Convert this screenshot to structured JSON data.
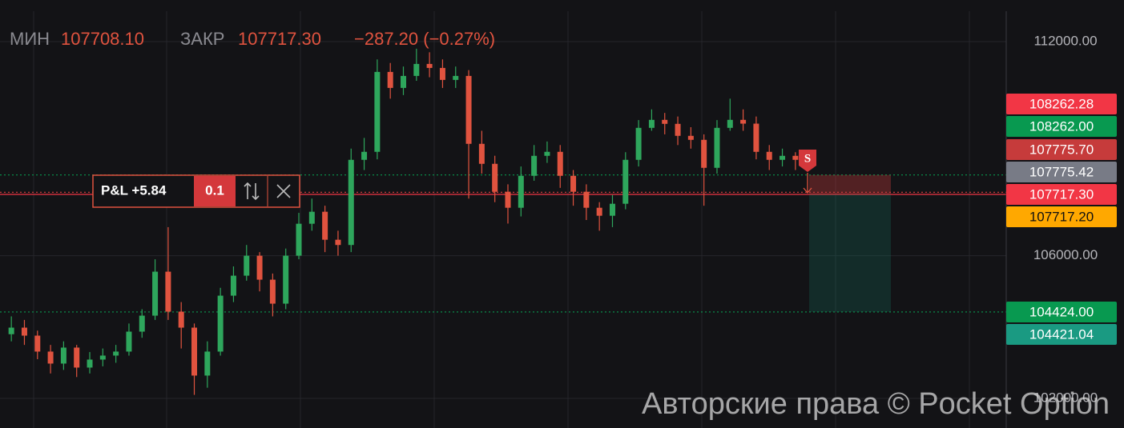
{
  "header": {
    "low_label": "МИН",
    "low_value": "107708.10",
    "close_label": "ЗАКР",
    "close_value": "107717.30",
    "change": "−287.20 (−0.27%)"
  },
  "position": {
    "pnl": "P&L +5.84",
    "volume": "0.1",
    "marker": "S"
  },
  "watermark": "Авторские права © Pocket Option",
  "chart_data": {
    "type": "candlestick",
    "ylim": [
      101000,
      113000
    ],
    "yticks": [
      {
        "value": 112000,
        "label": "112000.00"
      },
      {
        "value": 106000,
        "label": "106000.00"
      },
      {
        "value": 102000,
        "label": "102000.00"
      }
    ],
    "grid": true,
    "up_color": "#2ea65c",
    "down_color": "#e0533f",
    "open": [
      103800,
      103984,
      103760,
      103313,
      102977,
      103425,
      102865,
      103089,
      103201,
      103313,
      103872,
      104320,
      105552,
      104432,
      103984,
      102641,
      103313,
      104880,
      105440,
      105999,
      105328,
      104656,
      106000,
      106895,
      107231,
      106447,
      106300,
      108686,
      108910,
      111149,
      110701,
      111037,
      111373,
      111261,
      110925,
      111037,
      109134,
      108574,
      107791,
      107343,
      108238,
      108798,
      108910,
      108238,
      107791,
      107343,
      107119,
      107455,
      108686,
      109582,
      109806,
      109694,
      109358,
      109246,
      108462,
      109582,
      109806,
      109700,
      108910,
      108686,
      108798
    ],
    "high": [
      104300,
      104200,
      103900,
      103500,
      103600,
      103500,
      103300,
      103400,
      103500,
      104100,
      104500,
      105900,
      106800,
      104700,
      104100,
      103600,
      105100,
      105700,
      106300,
      106100,
      105500,
      106200,
      107200,
      107600,
      107400,
      106700,
      109000,
      109300,
      111500,
      111400,
      111300,
      111800,
      111700,
      111500,
      111300,
      111200,
      109500,
      108800,
      108000,
      108500,
      109100,
      109200,
      109100,
      108400,
      108000,
      107500,
      107700,
      108900,
      109800,
      110100,
      110000,
      109900,
      109600,
      109400,
      109800,
      110400,
      110100,
      109900,
      109100,
      109000,
      108900
    ],
    "low": [
      103600,
      103500,
      103100,
      102700,
      102800,
      102600,
      102700,
      102900,
      103000,
      103200,
      103700,
      104200,
      104200,
      103400,
      102100,
      102300,
      103200,
      104700,
      105300,
      105000,
      104300,
      104500,
      105900,
      106700,
      106100,
      106000,
      106100,
      108400,
      108700,
      110400,
      110500,
      110900,
      111000,
      110700,
      110700,
      107600,
      108300,
      107500,
      106900,
      107100,
      108100,
      108600,
      107900,
      107400,
      107000,
      106700,
      106800,
      107300,
      108500,
      109500,
      109400,
      109100,
      109000,
      107400,
      108300,
      109500,
      109500,
      108700,
      108400,
      108500,
      108400
    ],
    "close": [
      103984,
      103760,
      103313,
      102977,
      103425,
      102865,
      103089,
      103201,
      103313,
      103872,
      104320,
      105552,
      104432,
      103984,
      102641,
      103313,
      104880,
      105440,
      105999,
      105328,
      104656,
      106000,
      106895,
      107231,
      106447,
      106300,
      108686,
      108910,
      111149,
      110701,
      111037,
      111373,
      111261,
      110925,
      111037,
      109134,
      108574,
      107791,
      107343,
      108238,
      108798,
      108910,
      108238,
      107791,
      107343,
      107119,
      107455,
      108686,
      109582,
      109806,
      109694,
      109358,
      109246,
      108462,
      109582,
      109806,
      109700,
      108910,
      108686,
      108798,
      108686
    ],
    "levels": [
      {
        "value": 108262.28,
        "label": "108262.28",
        "color": "#f23645"
      },
      {
        "value": 108262.0,
        "label": "108262.00",
        "color": "#089950",
        "line": "dotted"
      },
      {
        "value": 107775.7,
        "label": "107775.70",
        "color": "#c63b3b",
        "line": "dotted"
      },
      {
        "value": 107775.42,
        "label": "107775.42",
        "color": "#787b86"
      },
      {
        "value": 107717.3,
        "label": "107717.30",
        "color": "#f23645",
        "line": "solid"
      },
      {
        "value": 107717.2,
        "label": "107717.20",
        "color": "#ffa800"
      },
      {
        "value": 104424.0,
        "label": "104424.00",
        "color": "#089950",
        "line": "dotted"
      },
      {
        "value": 104421.04,
        "label": "104421.04",
        "color": "#1a9a82"
      }
    ]
  }
}
